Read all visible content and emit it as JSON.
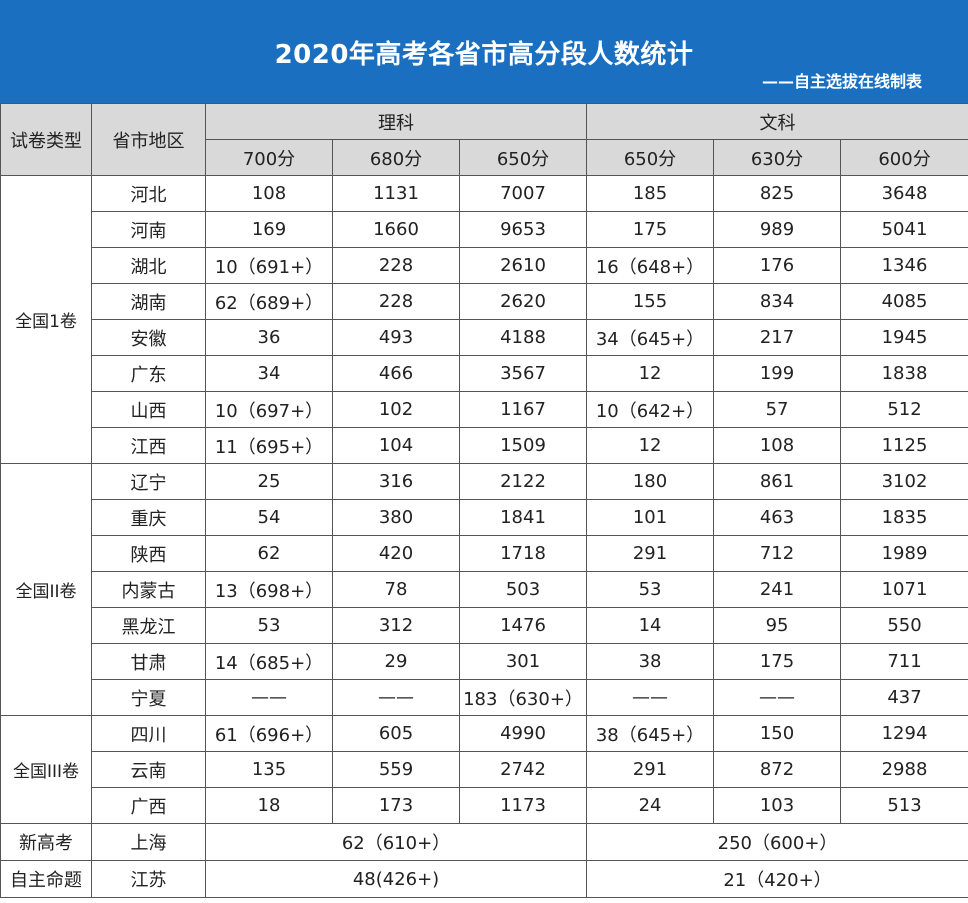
{
  "title": "2020年高考各省市高分段人数统计",
  "subtitle": "——自主选拔在线制表",
  "headers": {
    "paper_type": "试卷类型",
    "region": "省市地区",
    "science": "理科",
    "liberal": "文科",
    "sci_cols": [
      "700分",
      "680分",
      "650分"
    ],
    "lib_cols": [
      "650分",
      "630分",
      "600分"
    ]
  },
  "groups": [
    {
      "name": "全国1卷",
      "rows": [
        [
          "河北",
          "108",
          "1131",
          "7007",
          "185",
          "825",
          "3648"
        ],
        [
          "河南",
          "169",
          "1660",
          "9653",
          "175",
          "989",
          "5041"
        ],
        [
          "湖北",
          "10（691+）",
          "228",
          "2610",
          "16（648+）",
          "176",
          "1346"
        ],
        [
          "湖南",
          "62（689+）",
          "228",
          "2620",
          "155",
          "834",
          "4085"
        ],
        [
          "安徽",
          "36",
          "493",
          "4188",
          "34（645+）",
          "217",
          "1945"
        ],
        [
          "广东",
          "34",
          "466",
          "3567",
          "12",
          "199",
          "1838"
        ],
        [
          "山西",
          "10（697+）",
          "102",
          "1167",
          "10（642+）",
          "57",
          "512"
        ],
        [
          "江西",
          "11（695+）",
          "104",
          "1509",
          "12",
          "108",
          "1125"
        ]
      ]
    },
    {
      "name": "全国II卷",
      "rows": [
        [
          "辽宁",
          "25",
          "316",
          "2122",
          "180",
          "861",
          "3102"
        ],
        [
          "重庆",
          "54",
          "380",
          "1841",
          "101",
          "463",
          "1835"
        ],
        [
          "陕西",
          "62",
          "420",
          "1718",
          "291",
          "712",
          "1989"
        ],
        [
          "内蒙古",
          "13（698+）",
          "78",
          "503",
          "53",
          "241",
          "1071"
        ],
        [
          "黑龙江",
          "53",
          "312",
          "1476",
          "14",
          "95",
          "550"
        ],
        [
          "甘肃",
          "14（685+）",
          "29",
          "301",
          "38",
          "175",
          "711"
        ],
        [
          "宁夏",
          "——",
          "——",
          "183（630+）",
          "——",
          "——",
          "437"
        ]
      ]
    },
    {
      "name": "全国III卷",
      "rows": [
        [
          "四川",
          "61（696+）",
          "605",
          "4990",
          "38（645+）",
          "150",
          "1294"
        ],
        [
          "云南",
          "135",
          "559",
          "2742",
          "291",
          "872",
          "2988"
        ],
        [
          "广西",
          "18",
          "173",
          "1173",
          "24",
          "103",
          "513"
        ]
      ]
    }
  ],
  "special_rows": [
    {
      "type": "新高考",
      "region": "上海",
      "science": "62（610+）",
      "liberal": "250（600+）"
    },
    {
      "type": "自主命题",
      "region": "江苏",
      "science": "48(426+)",
      "liberal": "21（420+）"
    }
  ]
}
